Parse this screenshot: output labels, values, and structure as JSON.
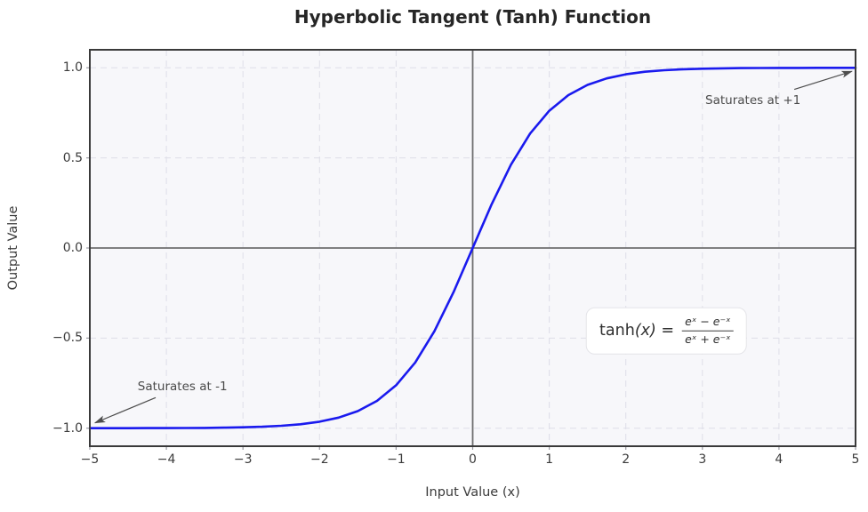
{
  "chart_data": {
    "type": "line",
    "title": "Hyperbolic Tangent (Tanh) Function",
    "xlabel": "Input Value (x)",
    "ylabel": "Output Value",
    "xlim": [
      -5,
      5
    ],
    "ylim": [
      -1.1,
      1.1
    ],
    "x_ticks": [
      -5,
      -4,
      -3,
      -2,
      -1,
      0,
      1,
      2,
      3,
      4,
      5
    ],
    "x_tick_labels": [
      "−5",
      "−4",
      "−3",
      "−2",
      "−1",
      "0",
      "1",
      "2",
      "3",
      "4",
      "5"
    ],
    "y_ticks": [
      -1.0,
      -0.5,
      0.0,
      0.5,
      1.0
    ],
    "y_tick_labels": [
      "−1.0",
      "−0.5",
      "0.0",
      "0.5",
      "1.0"
    ],
    "grid": {
      "visible": true,
      "style": "dashed",
      "color": "#dedee8"
    },
    "reference_lines": {
      "horizontal_y": 0,
      "vertical_x": 0,
      "color": "#6e6e6e"
    },
    "legend": "none",
    "series": [
      {
        "name": "tanh(x)",
        "color": "#1a1aee",
        "linewidth": 2.6,
        "x": [
          -5,
          -4.75,
          -4.5,
          -4.25,
          -4,
          -3.75,
          -3.5,
          -3.25,
          -3,
          -2.75,
          -2.5,
          -2.25,
          -2,
          -1.75,
          -1.5,
          -1.25,
          -1,
          -0.75,
          -0.5,
          -0.25,
          0,
          0.25,
          0.5,
          0.75,
          1,
          1.25,
          1.5,
          1.75,
          2,
          2.25,
          2.5,
          2.75,
          3,
          3.25,
          3.5,
          3.75,
          4,
          4.25,
          4.5,
          4.75,
          5
        ],
        "y": [
          -0.9999,
          -0.9999,
          -0.9998,
          -0.9996,
          -0.9993,
          -0.9989,
          -0.9982,
          -0.997,
          -0.9951,
          -0.9919,
          -0.9866,
          -0.978,
          -0.964,
          -0.9414,
          -0.9051,
          -0.8483,
          -0.7616,
          -0.6351,
          -0.4621,
          -0.2449,
          0,
          0.2449,
          0.4621,
          0.6351,
          0.7616,
          0.8483,
          0.9051,
          0.9414,
          0.964,
          0.978,
          0.9866,
          0.9919,
          0.9951,
          0.997,
          0.9982,
          0.9989,
          0.9993,
          0.9996,
          0.9998,
          0.9999,
          0.9999
        ]
      }
    ],
    "annotations": [
      {
        "text": "Saturates at +1",
        "xy": [
          4.95,
          0.98
        ],
        "text_xy": [
          3.66,
          0.82
        ],
        "arrow_start": [
          4.2,
          0.88
        ]
      },
      {
        "text": "Saturates at -1",
        "xy": [
          -4.93,
          -0.97
        ],
        "text_xy": [
          -3.79,
          -0.77
        ],
        "arrow_start": [
          -4.14,
          -0.83
        ]
      }
    ],
    "formula_xy": [
      2.53,
      -0.46
    ]
  },
  "formula": {
    "func": "tanh",
    "arg": "(x)",
    "equals": "=",
    "numerator": "eˣ − e⁻ˣ",
    "denominator": "eˣ + e⁻ˣ"
  },
  "colors": {
    "plot_bg": "#f7f7fa",
    "spine": "#3a3a3a",
    "grid": "#dedee8",
    "zero_line": "#6e6e6e",
    "curve": "#1a1aee",
    "arrow": "#4d4d4d",
    "tick_mark": "#9a9aa2"
  }
}
